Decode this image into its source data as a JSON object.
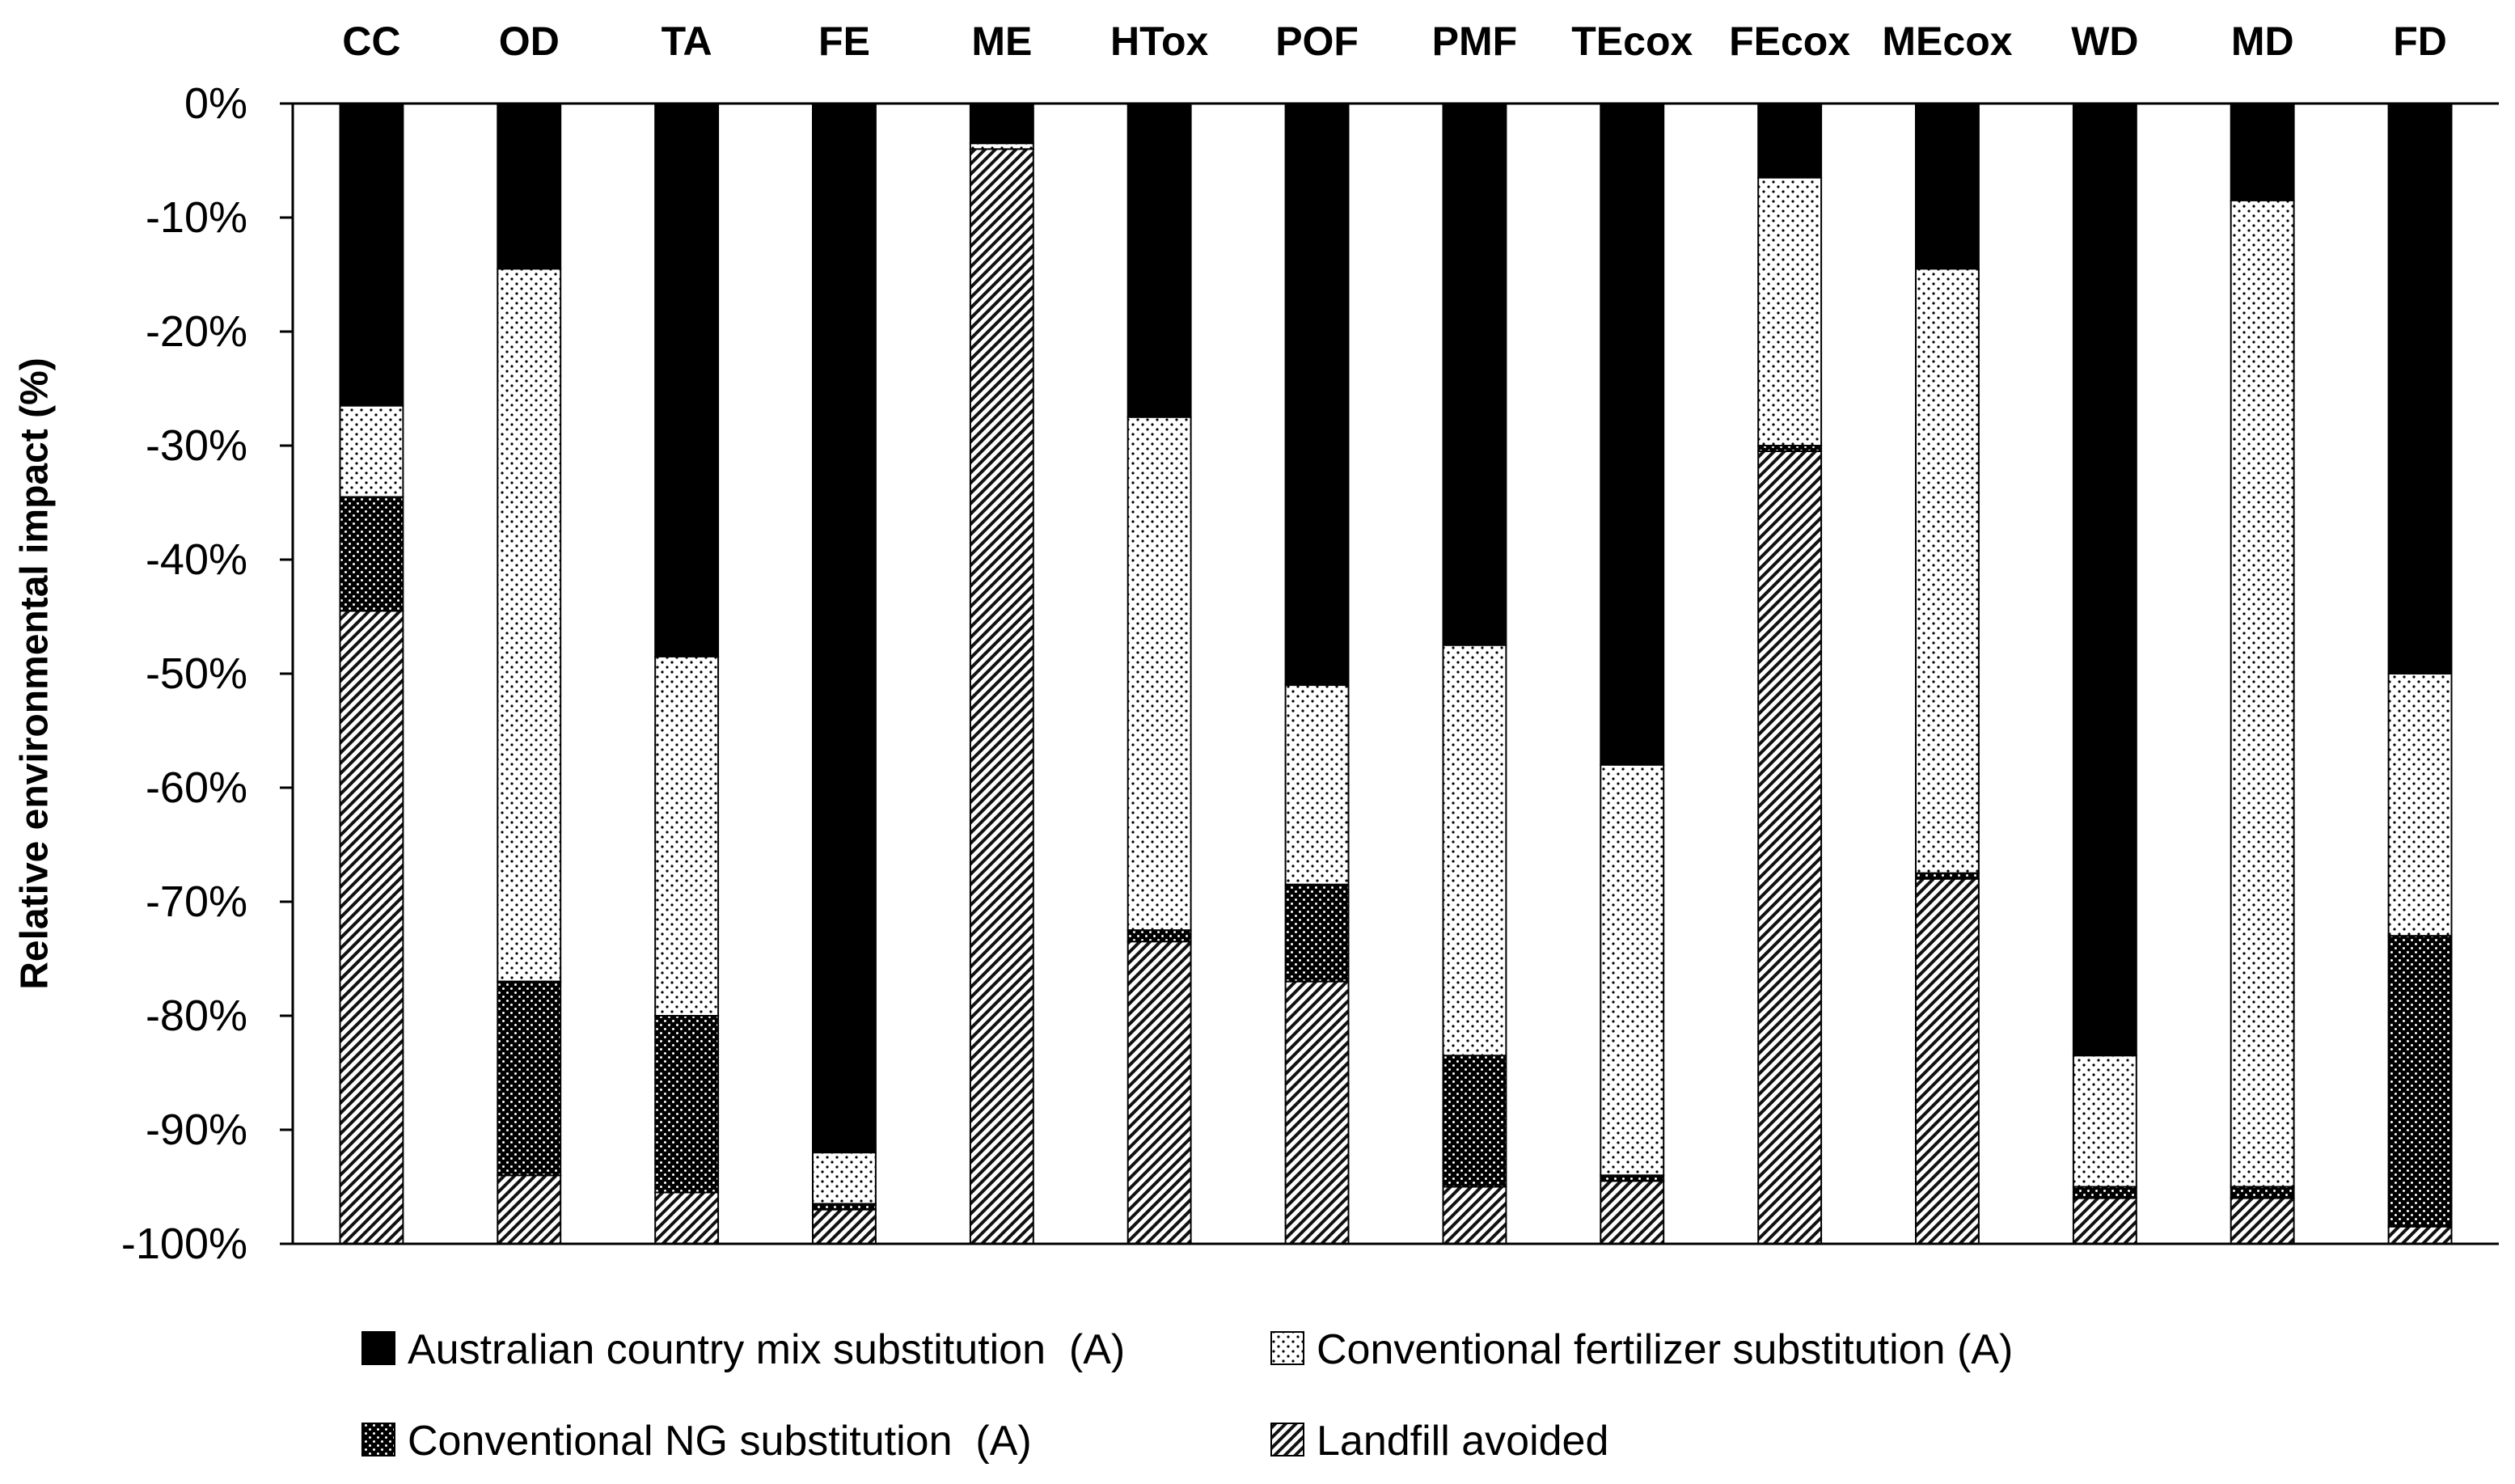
{
  "chart_data": {
    "type": "bar",
    "stacked": true,
    "title": "",
    "xlabel": "",
    "ylabel": "Relative environmental impact (%)",
    "ylim": [
      -100,
      0
    ],
    "y_ticks": [
      0,
      -10,
      -20,
      -30,
      -40,
      -50,
      -60,
      -70,
      -80,
      -90,
      -100
    ],
    "y_tick_labels": [
      "0%",
      "-10%",
      "-20%",
      "-30%",
      "-40%",
      "-50%",
      "-60%",
      "-70%",
      "-80%",
      "-90%",
      "-100%"
    ],
    "x_axis_position": "top",
    "grid": false,
    "legend_position": "bottom",
    "categories": [
      "CC",
      "OD",
      "TA",
      "FE",
      "ME",
      "HTox",
      "POF",
      "PMF",
      "TEcox",
      "FEcox",
      "MEcox",
      "WD",
      "MD",
      "FD"
    ],
    "series": [
      {
        "name": "Australian country mix substitution  (A)",
        "pattern": "solid-black",
        "values": [
          -26.5,
          -14.5,
          -48.5,
          -92.0,
          -3.5,
          -27.5,
          -51.0,
          -47.5,
          -58.0,
          -6.5,
          -14.5,
          -83.5,
          -8.5,
          -50.0
        ]
      },
      {
        "name": "Conventional fertilizer substitution (A)",
        "pattern": "sparse-dots",
        "values": [
          -8.0,
          -62.5,
          -31.5,
          -4.5,
          -0.5,
          -45.0,
          -17.5,
          -36.0,
          -36.0,
          -23.5,
          -53.0,
          -11.5,
          -86.5,
          -23.0
        ]
      },
      {
        "name": "Conventional NG substitution  (A)",
        "pattern": "dense-dots",
        "values": [
          -10.0,
          -17.0,
          -15.5,
          -0.5,
          0.0,
          -1.0,
          -8.5,
          -11.5,
          -0.5,
          -0.5,
          -0.5,
          -1.0,
          -1.0,
          -25.5
        ]
      },
      {
        "name": "Landfill avoided",
        "pattern": "diagonal-hatch",
        "values": [
          -55.5,
          -6.0,
          -4.5,
          -3.0,
          -96.0,
          -26.5,
          -23.0,
          -5.0,
          -5.5,
          -69.5,
          -32.0,
          -4.0,
          -4.0,
          -1.5
        ]
      }
    ],
    "colors": {
      "ink": "#000000",
      "background": "#ffffff",
      "pattern_light": "#c8c8c8"
    }
  }
}
